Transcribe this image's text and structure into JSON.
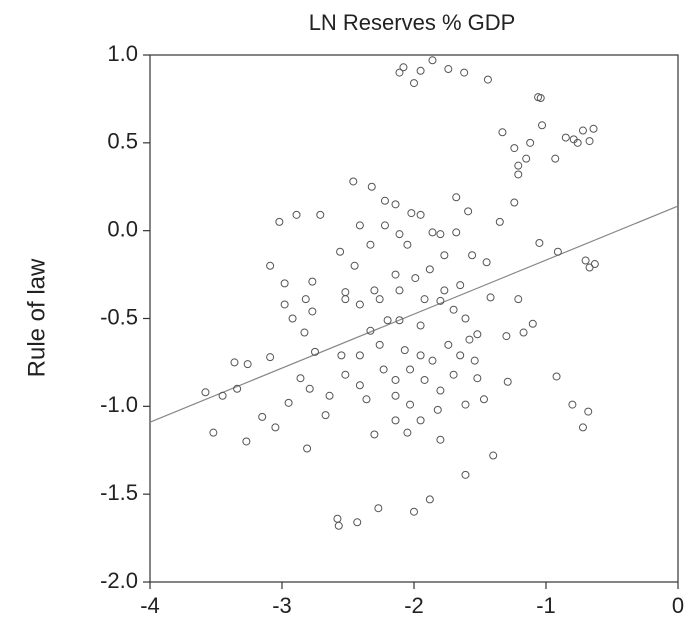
{
  "chart_data": {
    "type": "scatter",
    "title": "LN Reserves % GDP",
    "y_label": "Rule of law",
    "marker_color": "#555555",
    "trend_color": "#888888",
    "trend_line": {
      "x": [
        -4,
        0
      ],
      "y": [
        -1.09,
        0.14
      ]
    },
    "xlim": [
      -4,
      0
    ],
    "xticks": [
      -4,
      -3,
      -2,
      -1,
      0
    ],
    "ylim": [
      -2,
      1
    ],
    "yticks": [
      {
        "value": 1,
        "label": "1.0"
      },
      {
        "value": 0.5,
        "label": "0.5"
      },
      {
        "value": 0,
        "label": "0.0"
      },
      {
        "value": -0.5,
        "label": "-0.5"
      },
      {
        "value": -1,
        "label": "-1.0"
      },
      {
        "value": -1.5,
        "label": "-1.5"
      },
      {
        "value": -2,
        "label": "-2.0"
      }
    ],
    "x": [
      -1.86,
      -2.08,
      -2.11,
      -1.95,
      -1.74,
      -1.62,
      -1.44,
      -2.0,
      -1.06,
      -1.04,
      -1.03,
      -0.72,
      -1.33,
      -0.85,
      -0.79,
      -0.64,
      -0.76,
      -0.67,
      -1.12,
      -1.24,
      -1.15,
      -1.21,
      -0.93,
      -1.21,
      -2.46,
      -2.89,
      -3.02,
      -2.71,
      -2.32,
      -2.22,
      -2.14,
      -1.68,
      -2.02,
      -1.59,
      -1.24,
      -1.35,
      -1.05,
      -0.91,
      -0.7,
      -0.67,
      -0.63,
      -3.09,
      -2.98,
      -2.77,
      -2.82,
      -2.92,
      -2.98,
      -2.77,
      -2.52,
      -2.52,
      -2.41,
      -2.3,
      -2.14,
      -2.05,
      -1.86,
      -1.68,
      -1.56,
      -1.45,
      -1.42,
      -1.21,
      -1.1,
      -1.17,
      -1.3,
      -1.52,
      -2.11,
      -1.95,
      -1.8,
      -1.7,
      -1.61,
      -2.26,
      -2.41,
      -2.55,
      -2.75,
      -2.83,
      -3.09,
      -3.26,
      -3.36,
      -3.34,
      -3.45,
      -3.58,
      -3.52,
      -3.27,
      -3.15,
      -3.05,
      -2.95,
      -2.86,
      -2.79,
      -2.67,
      -2.81,
      -2.52,
      -2.36,
      -2.3,
      -2.14,
      -2.05,
      -1.95,
      -1.82,
      -1.8,
      -1.7,
      -1.61,
      -1.52,
      -1.47,
      -1.29,
      -1.4,
      -1.61,
      -1.88,
      -2.0,
      -2.27,
      -2.58,
      -2.57,
      -2.43,
      -0.92,
      -0.8,
      -0.68,
      -0.72,
      -2.23,
      -2.14,
      -2.03,
      -1.95,
      -1.86,
      -1.74,
      -2.2,
      -2.33,
      -2.26,
      -2.11,
      -1.99,
      -1.88,
      -1.77,
      -2.33,
      -2.45,
      -2.56,
      -2.41,
      -2.22,
      -2.11,
      -1.95,
      -1.8,
      -1.92,
      -1.77,
      -1.65,
      -2.14,
      -2.03,
      -2.41,
      -2.64,
      -2.07,
      -1.92,
      -1.8,
      -1.65,
      -1.58,
      -1.54
    ],
    "y": [
      0.97,
      0.93,
      0.9,
      0.91,
      0.92,
      0.9,
      0.86,
      0.84,
      0.76,
      0.755,
      0.6,
      0.57,
      0.56,
      0.53,
      0.52,
      0.58,
      0.5,
      0.51,
      0.5,
      0.47,
      0.41,
      0.37,
      0.41,
      0.32,
      0.28,
      0.09,
      0.05,
      0.09,
      0.25,
      0.17,
      0.15,
      0.19,
      0.1,
      0.11,
      0.16,
      0.05,
      -0.07,
      -0.12,
      -0.17,
      -0.21,
      -0.19,
      -0.2,
      -0.3,
      -0.29,
      -0.39,
      -0.5,
      -0.42,
      -0.46,
      -0.39,
      -0.35,
      -0.42,
      -0.34,
      -0.25,
      -0.08,
      -0.01,
      -0.01,
      -0.14,
      -0.18,
      -0.38,
      -0.39,
      -0.53,
      -0.58,
      -0.6,
      -0.59,
      -0.51,
      -0.54,
      -0.4,
      -0.45,
      -0.5,
      -0.65,
      -0.71,
      -0.71,
      -0.69,
      -0.58,
      -0.72,
      -0.76,
      -0.75,
      -0.9,
      -0.94,
      -0.92,
      -1.15,
      -1.2,
      -1.06,
      -1.12,
      -0.98,
      -0.84,
      -0.9,
      -1.05,
      -1.24,
      -0.82,
      -0.96,
      -1.16,
      -1.08,
      -1.15,
      -1.08,
      -1.02,
      -1.19,
      -0.82,
      -0.99,
      -0.84,
      -0.96,
      -0.86,
      -1.28,
      -1.39,
      -1.53,
      -1.6,
      -1.58,
      -1.64,
      -1.68,
      -1.66,
      -0.83,
      -0.99,
      -1.03,
      -1.12,
      -0.79,
      -0.85,
      -0.79,
      -0.71,
      -0.74,
      -0.65,
      -0.51,
      -0.57,
      -0.39,
      -0.34,
      -0.27,
      -0.22,
      -0.14,
      -0.08,
      -0.2,
      -0.12,
      0.03,
      0.03,
      -0.02,
      0.09,
      -0.02,
      -0.39,
      -0.34,
      -0.31,
      -0.94,
      -0.99,
      -0.88,
      -0.94,
      -0.68,
      -0.85,
      -0.91,
      -0.71,
      -0.62,
      -0.74
    ]
  }
}
